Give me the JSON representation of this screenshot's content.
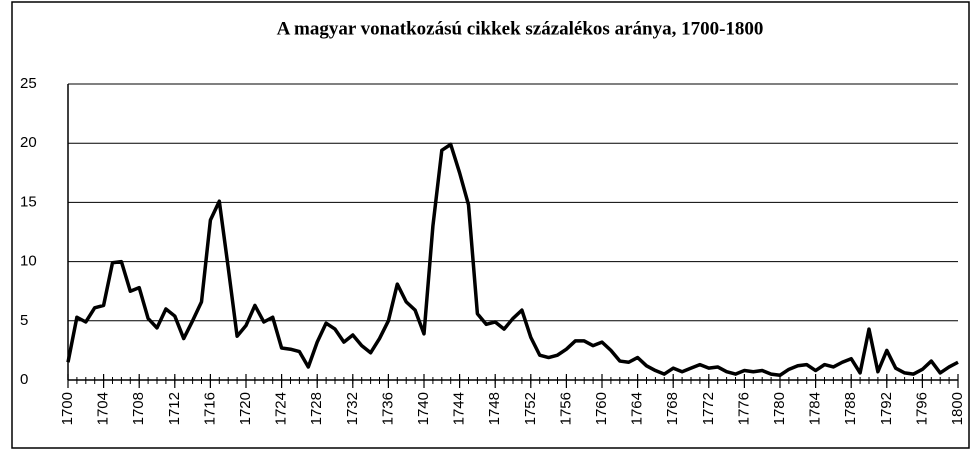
{
  "chart_data": {
    "type": "line",
    "title": "A magyar vonatkozású cikkek százalékos aránya, 1700-1800",
    "x": [
      1700,
      1701,
      1702,
      1703,
      1704,
      1705,
      1706,
      1707,
      1708,
      1709,
      1710,
      1711,
      1712,
      1713,
      1714,
      1715,
      1716,
      1717,
      1718,
      1719,
      1720,
      1721,
      1722,
      1723,
      1724,
      1725,
      1726,
      1727,
      1728,
      1729,
      1730,
      1731,
      1732,
      1733,
      1734,
      1735,
      1736,
      1737,
      1738,
      1739,
      1740,
      1741,
      1742,
      1743,
      1744,
      1745,
      1746,
      1747,
      1748,
      1749,
      1750,
      1751,
      1752,
      1753,
      1754,
      1755,
      1756,
      1757,
      1758,
      1759,
      1760,
      1761,
      1762,
      1763,
      1764,
      1765,
      1766,
      1767,
      1768,
      1769,
      1770,
      1771,
      1772,
      1773,
      1774,
      1775,
      1776,
      1777,
      1778,
      1779,
      1780,
      1781,
      1782,
      1783,
      1784,
      1785,
      1786,
      1787,
      1788,
      1789,
      1790,
      1791,
      1792,
      1793,
      1794,
      1795,
      1796,
      1797,
      1798,
      1799,
      1800
    ],
    "series": [
      {
        "color": "#000000",
        "values": [
          1.5,
          5.3,
          4.9,
          6.1,
          6.3,
          9.9,
          10.0,
          7.5,
          7.8,
          5.2,
          4.4,
          6.0,
          5.4,
          3.5,
          5.0,
          6.6,
          13.5,
          15.1,
          9.5,
          3.7,
          4.6,
          6.3,
          4.9,
          5.3,
          2.7,
          2.6,
          2.4,
          1.1,
          3.2,
          4.8,
          4.3,
          3.2,
          3.8,
          2.9,
          2.3,
          3.5,
          5.0,
          8.1,
          6.6,
          5.9,
          3.9,
          13.0,
          19.4,
          19.9,
          17.5,
          14.8,
          5.6,
          4.7,
          4.9,
          4.3,
          5.2,
          5.9,
          3.6,
          2.1,
          1.9,
          2.1,
          2.6,
          3.3,
          3.3,
          2.9,
          3.2,
          2.5,
          1.6,
          1.5,
          1.9,
          1.2,
          0.8,
          0.5,
          1.0,
          0.7,
          1.0,
          1.3,
          1.0,
          1.1,
          0.7,
          0.5,
          0.8,
          0.7,
          0.8,
          0.5,
          0.4,
          0.9,
          1.2,
          1.3,
          0.8,
          1.3,
          1.1,
          1.5,
          1.8,
          0.6,
          4.3,
          0.7,
          2.5,
          1.0,
          0.6,
          0.5,
          0.9,
          1.6,
          0.6,
          1.1,
          1.5
        ]
      }
    ],
    "xlim": [
      1700,
      1800
    ],
    "xticks": [
      1700,
      1704,
      1708,
      1712,
      1716,
      1720,
      1724,
      1728,
      1732,
      1736,
      1740,
      1744,
      1748,
      1752,
      1756,
      1760,
      1764,
      1768,
      1772,
      1776,
      1780,
      1784,
      1788,
      1792,
      1796,
      1800
    ],
    "ylim": [
      0,
      25
    ],
    "yticks": [
      0,
      5,
      10,
      15,
      20,
      25
    ],
    "grid": true
  }
}
